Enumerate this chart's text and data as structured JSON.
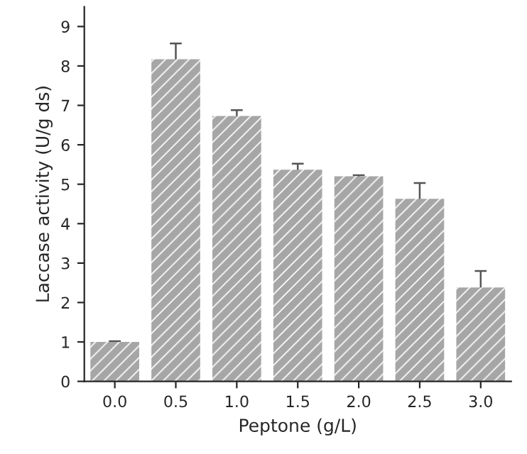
{
  "chart_data": {
    "type": "bar",
    "xlabel": "Peptone (g/L)",
    "ylabel": "Laccase activity (U/g ds)",
    "categories": [
      "0.0",
      "0.5",
      "1.0",
      "1.5",
      "2.0",
      "2.5",
      "3.0"
    ],
    "values": [
      1.0,
      8.17,
      6.73,
      5.37,
      5.2,
      4.63,
      2.38
    ],
    "errors": [
      0.02,
      0.4,
      0.15,
      0.15,
      0.03,
      0.4,
      0.42
    ],
    "color": "#a6a6a6",
    "ylim": [
      0,
      9.5
    ],
    "yticks": [
      0,
      1,
      2,
      3,
      4,
      5,
      6,
      7,
      8,
      9
    ],
    "grid": false,
    "legend": false
  }
}
